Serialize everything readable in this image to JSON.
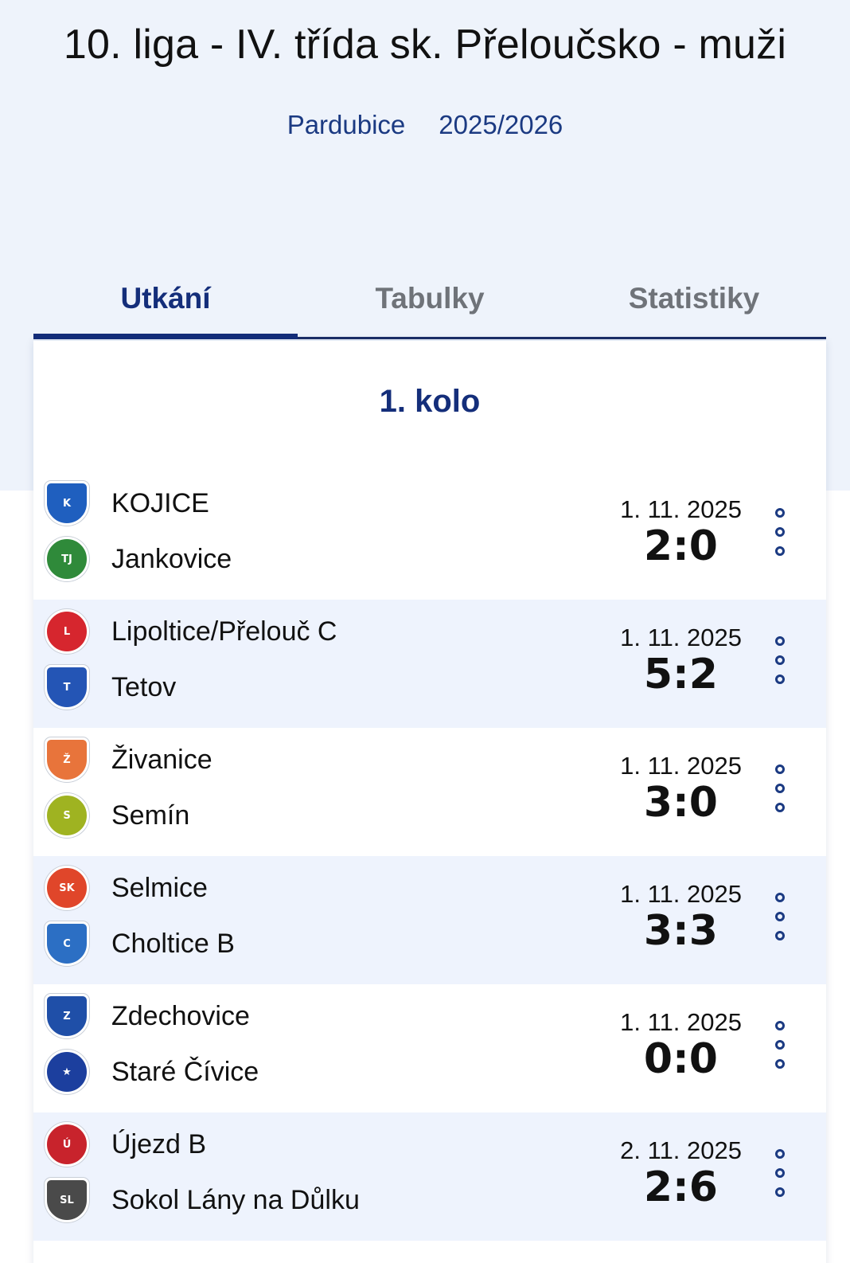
{
  "header": {
    "title": "10. liga - IV. třída sk. Přeloučsko - muži",
    "region": "Pardubice",
    "season": "2025/2026"
  },
  "tabs": [
    {
      "label": "Utkání",
      "active": true
    },
    {
      "label": "Tabulky",
      "active": false
    },
    {
      "label": "Statistiky",
      "active": false
    }
  ],
  "round": {
    "title": "1. kolo"
  },
  "colors": {
    "accent": "#142e7a",
    "hero_background": "#eef3fb",
    "alt_row": "#eef3fd"
  },
  "matches": [
    {
      "home": {
        "name": "KOJICE",
        "logo_icon": "kojice-crest-icon",
        "logo_color": "#1f5fbf",
        "logo_text": "K"
      },
      "away": {
        "name": "Jankovice",
        "logo_icon": "jankovice-crest-icon",
        "logo_color": "#2f8a3a",
        "logo_text": "TJ"
      },
      "date": "1. 11. 2025",
      "score": "2:0"
    },
    {
      "home": {
        "name": "Lipoltice/Přelouč C",
        "logo_icon": "lipoltice-crest-icon",
        "logo_color": "#d6262e",
        "logo_text": "L"
      },
      "away": {
        "name": "Tetov",
        "logo_icon": "tetov-crest-icon",
        "logo_color": "#2455b5",
        "logo_text": "T"
      },
      "date": "1. 11. 2025",
      "score": "5:2"
    },
    {
      "home": {
        "name": "Živanice",
        "logo_icon": "zivanice-crest-icon",
        "logo_color": "#e8743b",
        "logo_text": "Ž"
      },
      "away": {
        "name": "Semín",
        "logo_icon": "semin-crest-icon",
        "logo_color": "#9fb321",
        "logo_text": "S"
      },
      "date": "1. 11. 2025",
      "score": "3:0"
    },
    {
      "home": {
        "name": "Selmice",
        "logo_icon": "selmice-crest-icon",
        "logo_color": "#e0462a",
        "logo_text": "SK"
      },
      "away": {
        "name": "Choltice B",
        "logo_icon": "choltice-crest-icon",
        "logo_color": "#2c6fc4",
        "logo_text": "C"
      },
      "date": "1. 11. 2025",
      "score": "3:3"
    },
    {
      "home": {
        "name": "Zdechovice",
        "logo_icon": "zdechovice-crest-icon",
        "logo_color": "#1f4fa8",
        "logo_text": "Z"
      },
      "away": {
        "name": "Staré Čívice",
        "logo_icon": "stare-civice-crest-icon",
        "logo_color": "#1c3f9e",
        "logo_text": "★"
      },
      "date": "1. 11. 2025",
      "score": "0:0"
    },
    {
      "home": {
        "name": "Újezd B",
        "logo_icon": "ujezd-crest-icon",
        "logo_color": "#c8232c",
        "logo_text": "Ú"
      },
      "away": {
        "name": "Sokol Lány na Důlku",
        "logo_icon": "lany-crest-icon",
        "logo_color": "#4a4a4a",
        "logo_text": "SL"
      },
      "date": "2. 11. 2025",
      "score": "2:6"
    }
  ]
}
